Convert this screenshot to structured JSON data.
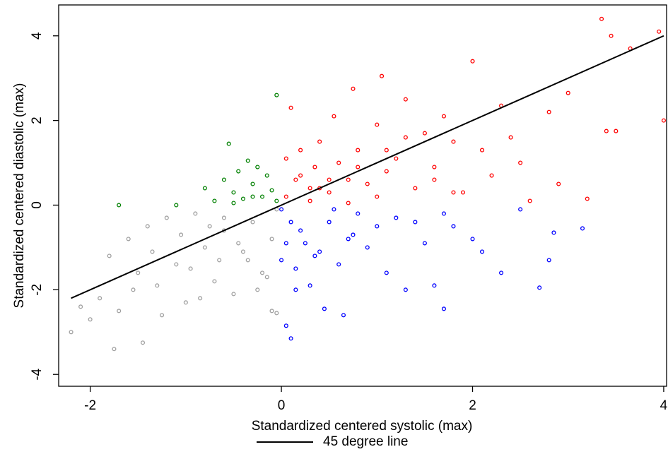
{
  "chart_data": {
    "type": "scatter",
    "x_label": "Standardized centered systolic (max)",
    "y_label": "Standardized centered diastolic (max)",
    "xlim": [
      -2.33,
      4.03
    ],
    "ylim": [
      -4.28,
      4.73
    ],
    "xticks": [
      -2,
      0,
      2,
      4
    ],
    "yticks": [
      -4,
      -2,
      0,
      2,
      4
    ],
    "legend": "bottom",
    "series": [
      {
        "color": "#ff0000",
        "x": [
          0.05,
          0.1,
          0.15,
          0.2,
          0.3,
          0.35,
          0.4,
          0.5,
          0.55,
          0.6,
          0.7,
          0.75,
          0.8,
          0.9,
          1.0,
          1.05,
          1.1,
          1.2,
          1.3,
          1.4,
          1.5,
          1.6,
          1.7,
          1.8,
          1.9,
          2.0,
          2.1,
          2.2,
          2.3,
          2.5,
          2.6,
          2.8,
          2.9,
          3.0,
          3.2,
          3.4,
          3.5,
          3.35,
          3.45,
          3.65,
          3.95,
          4.0,
          0.05,
          0.3,
          0.5,
          0.8,
          1.0,
          1.3,
          1.6,
          0.7,
          0.4,
          0.2,
          1.1,
          1.8,
          2.4
        ],
        "values": [
          0.2,
          2.3,
          0.6,
          1.3,
          0.4,
          0.9,
          1.5,
          0.3,
          2.1,
          1.0,
          0.6,
          2.75,
          1.3,
          0.5,
          1.9,
          3.05,
          0.8,
          1.1,
          2.5,
          0.4,
          1.7,
          0.6,
          2.1,
          1.5,
          0.3,
          3.4,
          1.3,
          0.7,
          2.35,
          1.0,
          0.1,
          2.2,
          0.5,
          2.65,
          0.15,
          1.75,
          1.75,
          4.4,
          4.0,
          3.7,
          4.1,
          2.0,
          1.1,
          0.1,
          0.6,
          0.9,
          0.2,
          1.6,
          0.9,
          0.05,
          0.4,
          0.7,
          1.3,
          0.3,
          1.6
        ]
      },
      {
        "color": "#0000ff",
        "x": [
          0.0,
          0.05,
          0.1,
          0.15,
          0.2,
          0.3,
          0.4,
          0.5,
          0.6,
          0.7,
          0.8,
          0.9,
          1.0,
          1.1,
          1.2,
          1.3,
          1.5,
          1.6,
          1.7,
          1.8,
          2.0,
          2.1,
          2.3,
          2.5,
          2.7,
          2.85,
          3.15,
          0.0,
          0.1,
          0.45,
          0.65,
          1.7,
          0.25,
          0.35,
          0.55,
          0.75,
          1.4,
          2.8,
          0.15,
          0.05
        ],
        "values": [
          -0.1,
          -2.85,
          -3.15,
          -1.5,
          -0.6,
          -1.9,
          -1.1,
          -0.4,
          -1.4,
          -0.8,
          -0.2,
          -1.0,
          -0.5,
          -1.6,
          -0.3,
          -2.0,
          -0.9,
          -1.9,
          -2.45,
          -0.5,
          -0.8,
          -1.1,
          -1.6,
          -0.1,
          -1.95,
          -0.65,
          -0.55,
          -1.3,
          -0.4,
          -2.45,
          -2.6,
          -0.2,
          -0.9,
          -1.2,
          -0.1,
          -0.7,
          -0.4,
          -1.3,
          -2.0,
          -0.9
        ]
      },
      {
        "color": "#a0a0a0",
        "x": [
          -2.2,
          -2.1,
          -2.0,
          -1.9,
          -1.8,
          -1.75,
          -1.7,
          -1.6,
          -1.5,
          -1.45,
          -1.4,
          -1.3,
          -1.2,
          -1.1,
          -1.0,
          -0.9,
          -0.8,
          -0.7,
          -0.6,
          -0.5,
          -0.4,
          -0.3,
          -0.2,
          -0.1,
          -0.05,
          -1.25,
          -1.05,
          -0.85,
          -0.65,
          -0.45,
          -0.25,
          -0.1,
          -1.55,
          -0.95,
          -0.35,
          -0.6,
          -1.35,
          -0.75,
          -0.15,
          -0.05
        ],
        "values": [
          -3.0,
          -2.4,
          -2.7,
          -2.2,
          -1.2,
          -3.4,
          -2.5,
          -0.8,
          -1.6,
          -3.25,
          -0.5,
          -1.9,
          -0.3,
          -1.4,
          -2.3,
          -0.2,
          -1.0,
          -1.8,
          -0.6,
          -2.1,
          -1.1,
          -0.4,
          -1.6,
          -2.5,
          -0.1,
          -2.6,
          -0.7,
          -2.2,
          -1.3,
          -0.9,
          -2.0,
          -0.8,
          -2.0,
          -1.5,
          -1.3,
          -0.3,
          -1.1,
          -0.5,
          -1.7,
          -2.55
        ]
      },
      {
        "color": "#008000",
        "x": [
          -1.7,
          -1.1,
          -0.8,
          -0.7,
          -0.6,
          -0.55,
          -0.5,
          -0.45,
          -0.4,
          -0.35,
          -0.3,
          -0.25,
          -0.2,
          -0.15,
          -0.1,
          -0.05,
          -0.05,
          -0.3,
          -0.5
        ],
        "values": [
          0.0,
          0.0,
          0.4,
          0.1,
          0.6,
          1.45,
          0.3,
          0.8,
          0.15,
          1.05,
          0.5,
          0.9,
          0.2,
          0.7,
          0.35,
          0.1,
          2.6,
          0.2,
          0.05
        ]
      },
      {
        "name": "45 degree line",
        "type": "line",
        "color": "#000000",
        "x": [
          -2.2,
          4
        ],
        "values": [
          -2.2,
          4
        ]
      }
    ]
  }
}
